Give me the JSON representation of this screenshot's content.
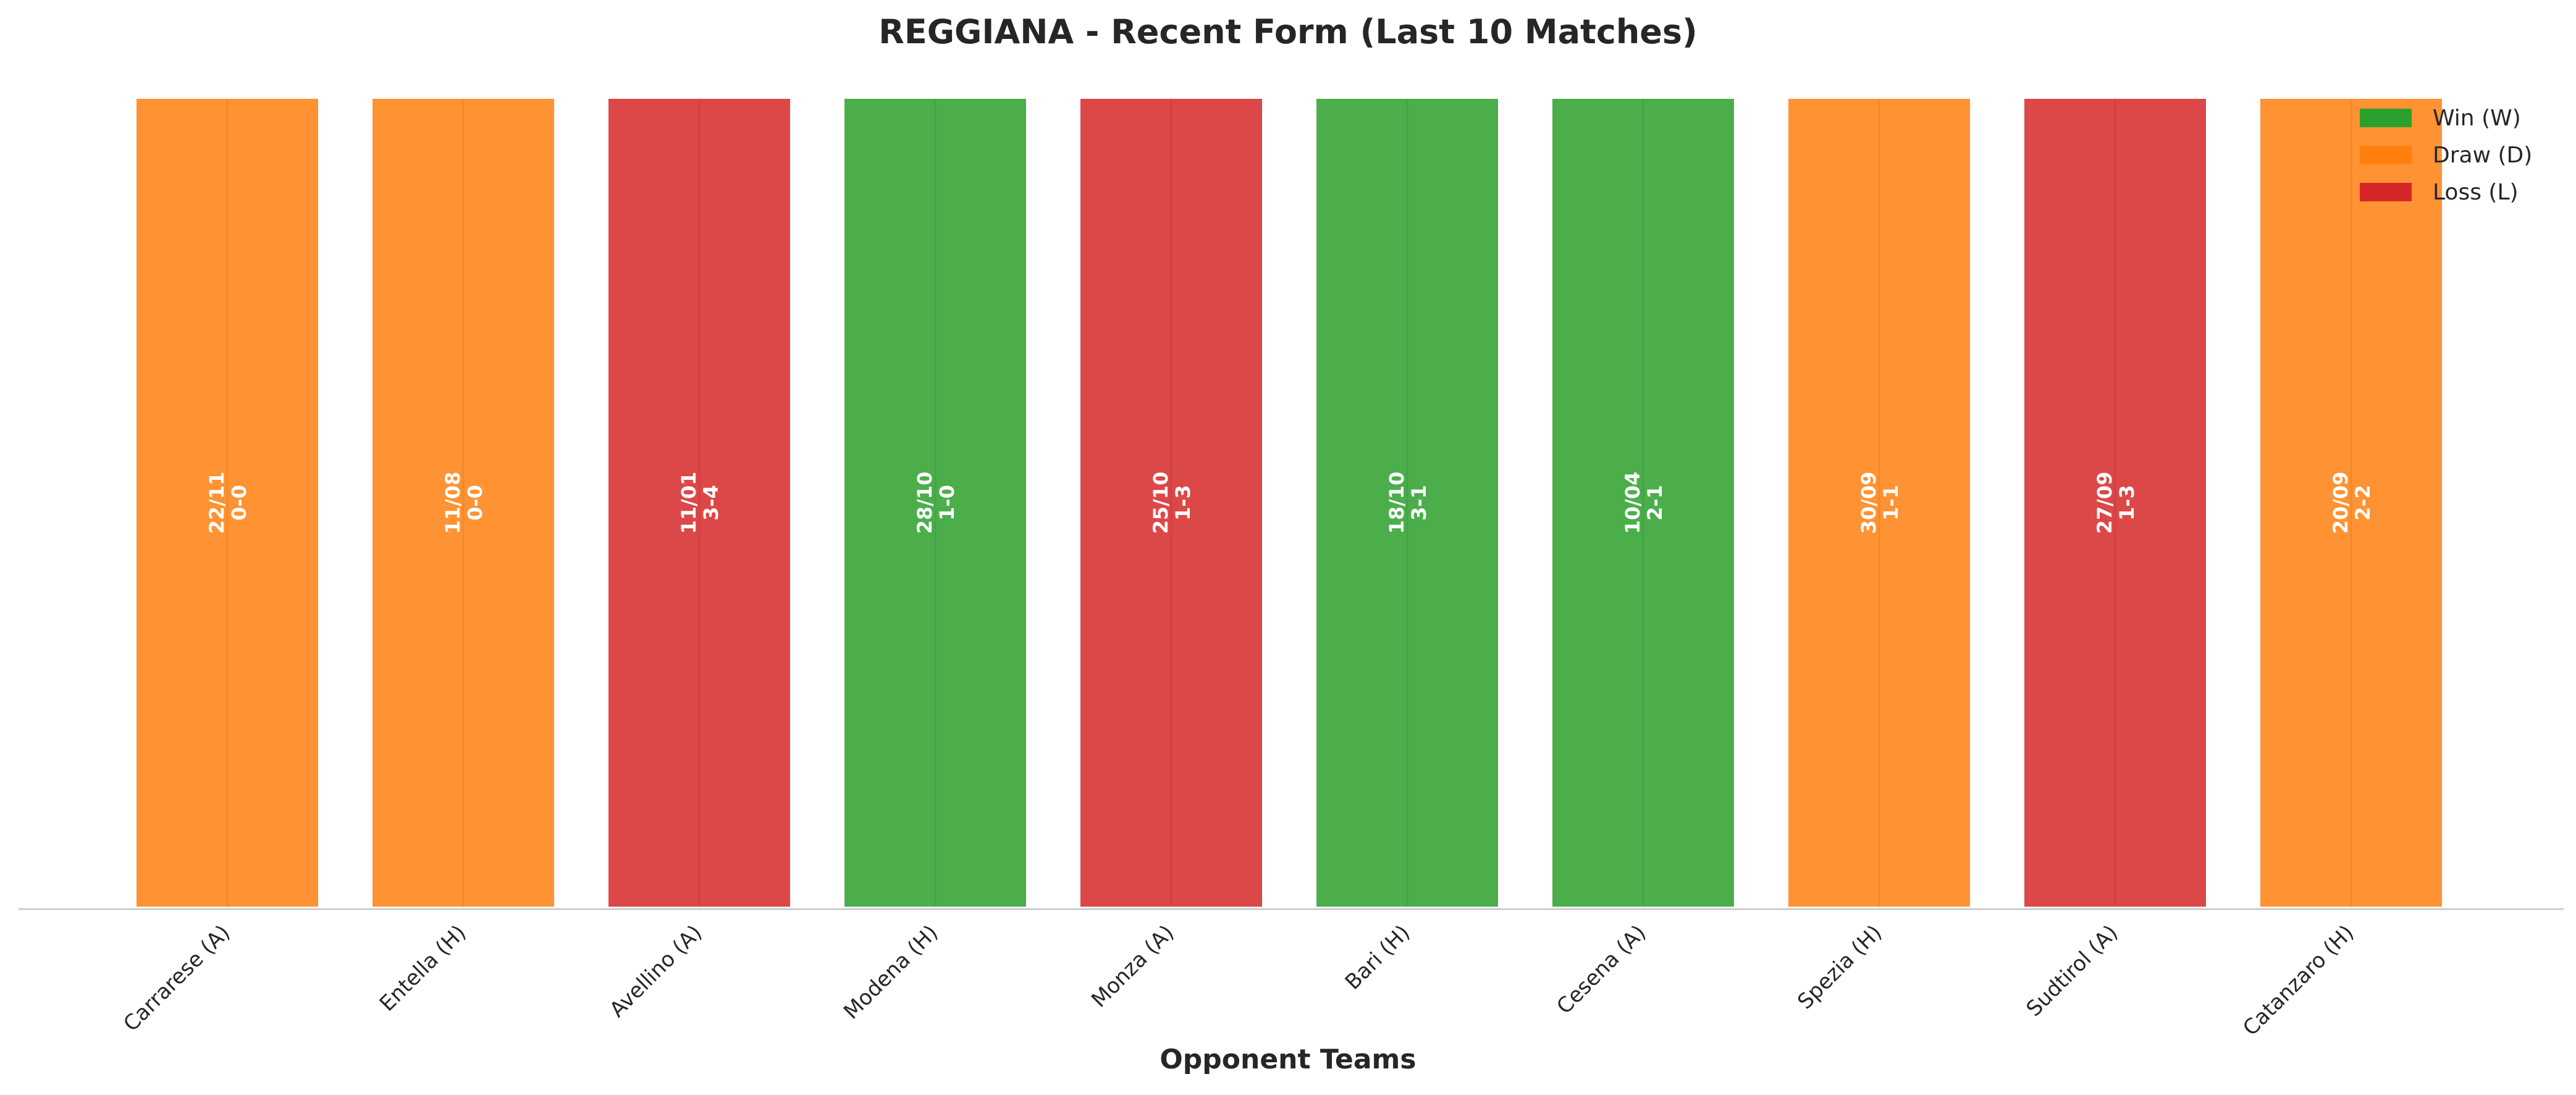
{
  "chart_data": {
    "type": "bar",
    "title": "REGGIANA - Recent Form (Last 10 Matches)",
    "xlabel": "Opponent Teams",
    "ylabel": "",
    "categories": [
      "Carrarese (A)",
      "Entella (H)",
      "Avellino (A)",
      "Modena (H)",
      "Monza (A)",
      "Bari (H)",
      "Cesena (A)",
      "Spezia (H)",
      "Sudtirol (A)",
      "Catanzaro (H)"
    ],
    "values": [
      1,
      1,
      1,
      1,
      1,
      1,
      1,
      1,
      1,
      1
    ],
    "results": [
      "D",
      "D",
      "L",
      "W",
      "L",
      "W",
      "W",
      "D",
      "L",
      "D"
    ],
    "dates": [
      "22/11",
      "11/08",
      "11/01",
      "28/10",
      "25/10",
      "18/10",
      "10/04",
      "30/09",
      "27/09",
      "20/09"
    ],
    "scores": [
      "0-0",
      "0-0",
      "3-4",
      "1-0",
      "1-3",
      "3-1",
      "2-1",
      "1-1",
      "1-3",
      "2-2"
    ],
    "legend": {
      "position": "top-right",
      "entries": [
        {
          "key": "W",
          "label": "Win (W)",
          "color": "#2ca02c"
        },
        {
          "key": "D",
          "label": "Draw (D)",
          "color": "#ff7f0e"
        },
        {
          "key": "L",
          "label": "Loss (L)",
          "color": "#d62728"
        }
      ]
    },
    "grid": false,
    "ylim": [
      0,
      1
    ]
  }
}
